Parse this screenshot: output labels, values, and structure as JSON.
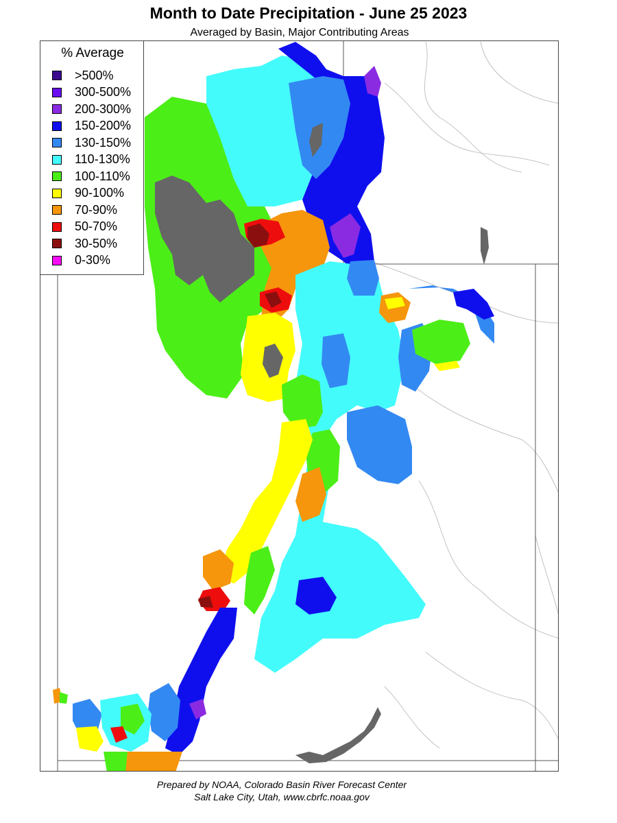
{
  "title": "Month to Date Precipitation - June 25 2023",
  "subtitle": "Averaged by Basin, Major Contributing Areas",
  "legend": {
    "title": "% Average",
    "items": [
      {
        "label": ">500%",
        "color": "#3b0a8f"
      },
      {
        "label": "300-500%",
        "color": "#6a0ef0"
      },
      {
        "label": "200-300%",
        "color": "#8a2be2"
      },
      {
        "label": "150-200%",
        "color": "#0f0fee"
      },
      {
        "label": "130-150%",
        "color": "#3389f2"
      },
      {
        "label": "110-130%",
        "color": "#44fbfb"
      },
      {
        "label": "100-110%",
        "color": "#4cee17"
      },
      {
        "label": "90-100%",
        "color": "#ffff00"
      },
      {
        "label": "70-90%",
        "color": "#f5960c"
      },
      {
        "label": "50-70%",
        "color": "#ee0d0d"
      },
      {
        "label": "30-50%",
        "color": "#8b0f0f"
      },
      {
        "label": "0-30%",
        "color": "#f70cf7"
      }
    ]
  },
  "colors": {
    "no_data": "#666666",
    "boundary": "#555555",
    "river": "#bbbbbb"
  },
  "footer": {
    "line1": "Prepared by NOAA, Colorado Basin River Forecast Center",
    "line2": "Salt Lake City, Utah, www.cbrfc.noaa.gov"
  }
}
